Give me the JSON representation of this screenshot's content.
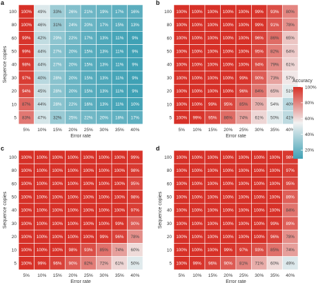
{
  "colors": {
    "high": "#d73027",
    "mid": "#f2f2f2",
    "low": "#3fa1b5"
  },
  "legend": {
    "title": "Accuracy",
    "ticks": [
      "100%",
      "80%",
      "60%",
      "40%",
      "20%"
    ],
    "tick_values": [
      100,
      80,
      60,
      40,
      20
    ],
    "range": [
      9,
      100
    ]
  },
  "chart_data": [
    {
      "type": "heatmap",
      "panel": "a",
      "xlabel": "Error rate",
      "ylabel": "Sequence copies",
      "x": [
        "5%",
        "10%",
        "15%",
        "20%",
        "25%",
        "30%",
        "35%",
        "40%"
      ],
      "y": [
        "100",
        "80",
        "60",
        "50",
        "40",
        "30",
        "20",
        "10",
        "5"
      ],
      "values": [
        [
          100,
          49,
          33,
          26,
          21,
          19,
          17,
          16
        ],
        [
          100,
          46,
          31,
          24,
          20,
          17,
          15,
          13
        ],
        [
          99,
          42,
          29,
          22,
          17,
          13,
          11,
          9
        ],
        [
          99,
          44,
          27,
          20,
          15,
          13,
          11,
          9
        ],
        [
          98,
          44,
          27,
          20,
          15,
          13,
          11,
          9
        ],
        [
          97,
          40,
          28,
          20,
          15,
          13,
          11,
          9
        ],
        [
          94,
          45,
          28,
          20,
          15,
          13,
          11,
          9
        ],
        [
          87,
          44,
          28,
          22,
          16,
          13,
          11,
          10
        ],
        [
          83,
          47,
          32,
          25,
          22,
          20,
          18,
          17
        ]
      ]
    },
    {
      "type": "heatmap",
      "panel": "b",
      "xlabel": "Error rate",
      "ylabel": "",
      "x": [
        "5%",
        "10%",
        "15%",
        "20%",
        "25%",
        "30%",
        "35%",
        "40%"
      ],
      "y": [
        "100",
        "80",
        "60",
        "50",
        "40",
        "30",
        "20",
        "10",
        "5"
      ],
      "values": [
        [
          100,
          100,
          100,
          100,
          100,
          99,
          93,
          80
        ],
        [
          100,
          100,
          100,
          100,
          100,
          99,
          91,
          78
        ],
        [
          100,
          100,
          100,
          100,
          100,
          96,
          86,
          65
        ],
        [
          100,
          100,
          100,
          100,
          100,
          95,
          82,
          64
        ],
        [
          100,
          100,
          100,
          100,
          100,
          94,
          79,
          61
        ],
        [
          100,
          100,
          100,
          100,
          99,
          90,
          73,
          57
        ],
        [
          100,
          100,
          100,
          100,
          96,
          84,
          65,
          51
        ],
        [
          100,
          100,
          99,
          95,
          85,
          70,
          54,
          40
        ],
        [
          100,
          99,
          95,
          86,
          74,
          61,
          50,
          41
        ]
      ]
    },
    {
      "type": "heatmap",
      "panel": "c",
      "xlabel": "Error rate",
      "ylabel": "Sequence copies",
      "x": [
        "5%",
        "10%",
        "15%",
        "20%",
        "25%",
        "30%",
        "35%",
        "40%"
      ],
      "y": [
        "100",
        "80",
        "60",
        "50",
        "40",
        "30",
        "20",
        "10",
        "5"
      ],
      "values": [
        [
          100,
          100,
          100,
          100,
          100,
          100,
          100,
          99
        ],
        [
          100,
          100,
          100,
          100,
          100,
          100,
          100,
          98
        ],
        [
          100,
          100,
          100,
          100,
          100,
          100,
          100,
          95
        ],
        [
          100,
          100,
          100,
          100,
          100,
          100,
          100,
          98
        ],
        [
          100,
          100,
          100,
          100,
          100,
          100,
          100,
          97
        ],
        [
          100,
          100,
          100,
          100,
          100,
          100,
          99,
          90
        ],
        [
          100,
          100,
          100,
          100,
          100,
          99,
          96,
          78
        ],
        [
          100,
          100,
          100,
          98,
          93,
          85,
          74,
          60
        ],
        [
          100,
          99,
          96,
          90,
          82,
          72,
          61,
          50
        ]
      ]
    },
    {
      "type": "heatmap",
      "panel": "d",
      "xlabel": "Error rate",
      "ylabel": "Sequence copies",
      "x": [
        "5%",
        "10%",
        "15%",
        "20%",
        "25%",
        "30%",
        "35%",
        "40%"
      ],
      "y": [
        "100",
        "80",
        "60",
        "50",
        "40",
        "30",
        "20",
        "10",
        "5"
      ],
      "values": [
        [
          100,
          100,
          100,
          100,
          100,
          100,
          100,
          98
        ],
        [
          100,
          100,
          100,
          100,
          100,
          100,
          100,
          97
        ],
        [
          100,
          100,
          100,
          100,
          100,
          100,
          100,
          95
        ],
        [
          100,
          100,
          100,
          100,
          100,
          100,
          100,
          89
        ],
        [
          100,
          100,
          100,
          100,
          100,
          100,
          100,
          84
        ],
        [
          100,
          100,
          100,
          100,
          100,
          100,
          99,
          89
        ],
        [
          100,
          100,
          100,
          100,
          100,
          100,
          96,
          78
        ],
        [
          100,
          100,
          100,
          99,
          97,
          93,
          85,
          74
        ],
        [
          100,
          99,
          96,
          90,
          81,
          71,
          60,
          49
        ]
      ]
    }
  ]
}
